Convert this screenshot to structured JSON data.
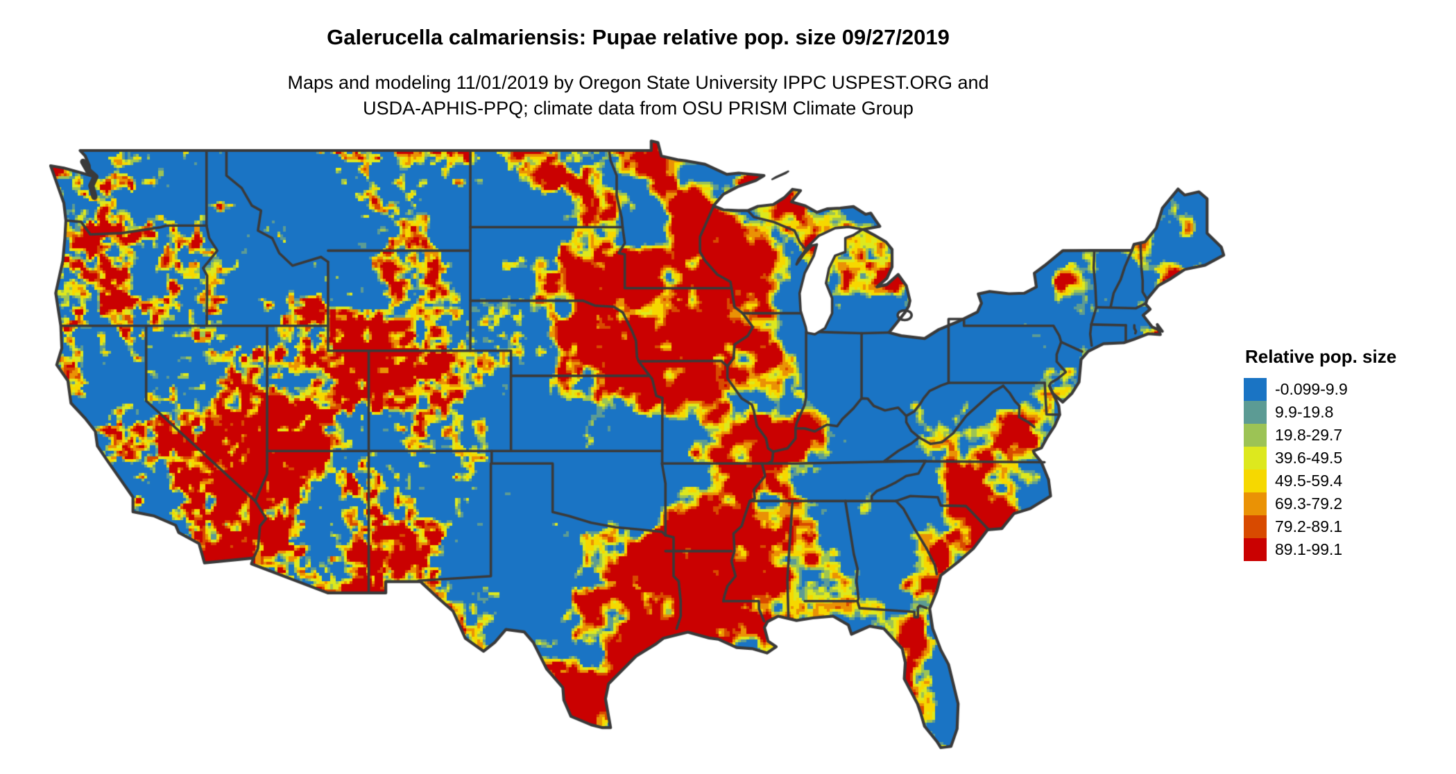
{
  "header": {
    "title": "Galerucella calmariensis: Pupae relative pop. size 09/27/2019",
    "subtitle_line1": "Maps and modeling 11/01/2019 by Oregon State University IPPC USPEST.ORG and",
    "subtitle_line2": "USDA-APHIS-PPQ; climate data from OSU PRISM Climate Group"
  },
  "legend": {
    "title": "Relative pop. size",
    "entries": [
      {
        "label": "-0.099-9.9",
        "color": "#1a74c4"
      },
      {
        "label": "9.9-19.8",
        "color": "#5c9b94"
      },
      {
        "label": "19.8-29.7",
        "color": "#9cc355"
      },
      {
        "label": "39.6-49.5",
        "color": "#dde81e"
      },
      {
        "label": "49.5-59.4",
        "color": "#f6d800"
      },
      {
        "label": "69.3-79.2",
        "color": "#ea9205"
      },
      {
        "label": "79.2-89.1",
        "color": "#d84a00"
      },
      {
        "label": "89.1-99.1",
        "color": "#ca0101"
      }
    ]
  },
  "map": {
    "background": "#ffffff",
    "water_color": "#ffffff",
    "border_color": "#3a3a3a",
    "base_color": "#1a74c4"
  },
  "chart_data": {
    "type": "heatmap",
    "title": "Galerucella calmariensis: Pupae relative pop. size 09/27/2019",
    "legend_title": "Relative pop. size",
    "legend_position": "right",
    "region_shown": "contiguous United States with state boundaries",
    "classes": [
      {
        "range": "-0.099-9.9",
        "color": "#1a74c4"
      },
      {
        "range": "9.9-19.8",
        "color": "#5c9b94"
      },
      {
        "range": "19.8-29.7",
        "color": "#9cc355"
      },
      {
        "range": "39.6-49.5",
        "color": "#dde81e"
      },
      {
        "range": "49.5-59.4",
        "color": "#f6d800"
      },
      {
        "range": "69.3-79.2",
        "color": "#ea9205"
      },
      {
        "range": "79.2-89.1",
        "color": "#d84a00"
      },
      {
        "range": "89.1-99.1",
        "color": "#ca0101"
      }
    ]
  }
}
